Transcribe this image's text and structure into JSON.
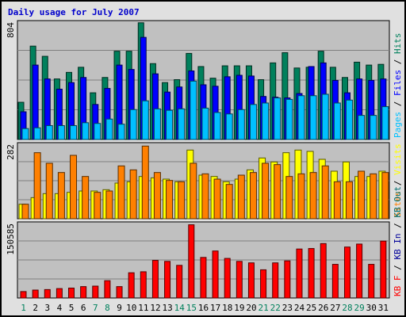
{
  "title": "Daily usage for July 2007",
  "colors": {
    "frame_bg": "#e0e0e0",
    "plot_bg": "#c0c0c0",
    "title": "#0000cc",
    "axis_text": "#000000",
    "hits": "#00805c",
    "files": "#0000ff",
    "pages": "#00c0ff",
    "visits": "#ffff00",
    "sites": "#ff8000",
    "kbout": "#007070",
    "kbin": "#000099",
    "kbf": "#ff0000",
    "weekend": "#00805c"
  },
  "chart_data": [
    {
      "type": "bar",
      "panel": "hits-files-pages",
      "max_label": "804",
      "ymax": 804,
      "right_labels": [
        "Pages",
        "Files",
        "Hits"
      ],
      "series": [
        {
          "name": "Hits",
          "values": [
            255,
            640,
            570,
            415,
            460,
            495,
            320,
            425,
            605,
            605,
            800,
            520,
            390,
            410,
            590,
            500,
            420,
            505,
            505,
            505,
            410,
            525,
            595,
            490,
            495,
            605,
            495,
            425,
            530,
            510,
            515
          ]
        },
        {
          "name": "Files",
          "values": [
            190,
            510,
            415,
            345,
            390,
            425,
            240,
            350,
            510,
            480,
            700,
            450,
            325,
            360,
            470,
            375,
            365,
            430,
            440,
            435,
            295,
            290,
            285,
            315,
            500,
            525,
            405,
            320,
            415,
            405,
            415
          ]
        },
        {
          "name": "Pages",
          "values": [
            75,
            80,
            95,
            95,
            95,
            115,
            110,
            140,
            105,
            205,
            265,
            210,
            200,
            210,
            400,
            215,
            185,
            175,
            205,
            240,
            250,
            285,
            275,
            300,
            300,
            310,
            250,
            270,
            165,
            165,
            225
          ]
        }
      ]
    },
    {
      "type": "bar",
      "panel": "visits-sites",
      "max_label": "282",
      "ymax": 282,
      "right_labels": [
        "Sites",
        "Visits"
      ],
      "series": [
        {
          "name": "Visits",
          "values": [
            55,
            80,
            95,
            95,
            100,
            105,
            105,
            110,
            135,
            140,
            160,
            155,
            150,
            140,
            260,
            165,
            160,
            140,
            150,
            185,
            230,
            215,
            250,
            260,
            255,
            225,
            180,
            215,
            160,
            160,
            180
          ]
        },
        {
          "name": "Sites",
          "values": [
            55,
            250,
            210,
            175,
            240,
            160,
            100,
            105,
            200,
            185,
            275,
            175,
            145,
            140,
            210,
            170,
            150,
            130,
            165,
            175,
            210,
            205,
            160,
            170,
            175,
            200,
            140,
            140,
            180,
            170,
            175
          ]
        }
      ]
    },
    {
      "type": "bar",
      "panel": "kbf",
      "max_label": "150585",
      "ymax": 150585,
      "right_labels": [
        "KB F",
        "KB In",
        "KB Out"
      ],
      "series": [
        {
          "name": "KB F",
          "values": [
            13000,
            16000,
            17000,
            19000,
            20000,
            23000,
            24000,
            35000,
            23000,
            51000,
            53000,
            76000,
            74000,
            66000,
            148000,
            82000,
            95000,
            80000,
            74000,
            71000,
            57000,
            71000,
            75000,
            99000,
            100000,
            110000,
            68000,
            103000,
            109000,
            68000,
            115000
          ]
        }
      ]
    }
  ],
  "x_labels": [
    "1",
    "2",
    "3",
    "4",
    "5",
    "6",
    "7",
    "8",
    "9",
    "10",
    "11",
    "12",
    "13",
    "14",
    "15",
    "16",
    "17",
    "18",
    "19",
    "20",
    "21",
    "22",
    "23",
    "24",
    "25",
    "26",
    "27",
    "28",
    "29",
    "30",
    "31"
  ],
  "weekend_days": [
    1,
    7,
    8,
    14,
    15,
    21,
    22,
    28,
    29
  ]
}
